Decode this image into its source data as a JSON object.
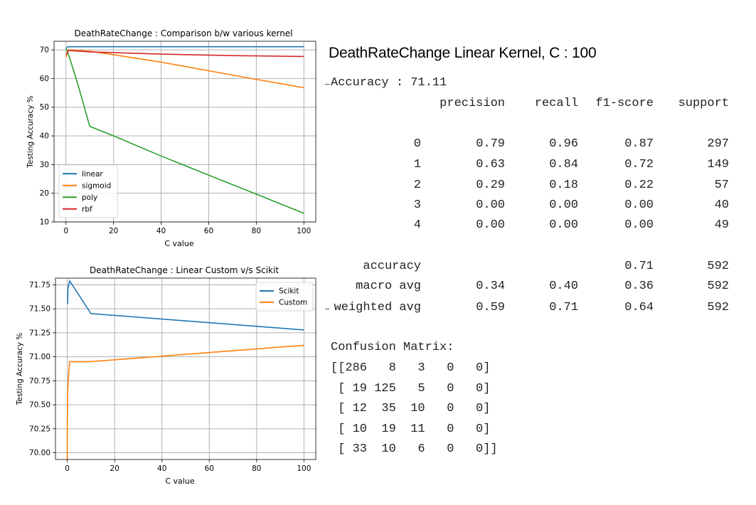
{
  "chart_data": [
    {
      "type": "line",
      "title": "DeathRateChange : Comparison b/w various kernel",
      "xlabel": "C value",
      "ylabel": "Testing Accuracy %",
      "xlim": [
        -5,
        105
      ],
      "ylim": [
        10,
        73
      ],
      "xticks": [
        0,
        20,
        40,
        60,
        80,
        100
      ],
      "yticks": [
        10,
        20,
        30,
        40,
        50,
        60,
        70
      ],
      "grid": true,
      "legend_position": "lower-left",
      "series": [
        {
          "name": "linear",
          "color": "#1f77b4",
          "x": [
            0.1,
            1,
            10,
            100
          ],
          "y": [
            70.7,
            71.1,
            71.1,
            71.1
          ]
        },
        {
          "name": "sigmoid",
          "color": "#ff7f0e",
          "x": [
            0.1,
            0.5,
            1,
            10,
            20,
            40,
            60,
            80,
            100
          ],
          "y": [
            67.5,
            69.0,
            70.0,
            69.5,
            68.3,
            65.7,
            62.7,
            59.7,
            56.8
          ]
        },
        {
          "name": "poly",
          "color": "#2ca02c",
          "x": [
            0.1,
            1,
            2,
            5,
            10,
            20,
            40,
            60,
            80,
            100
          ],
          "y": [
            70.5,
            68.5,
            66.0,
            58.0,
            43.3,
            40.0,
            33.0,
            26.3,
            19.7,
            13.0
          ]
        },
        {
          "name": "rbf",
          "color": "#d62728",
          "x": [
            0.1,
            1,
            10,
            40,
            70,
            100
          ],
          "y": [
            68.3,
            69.8,
            69.3,
            68.5,
            68.0,
            67.7
          ]
        }
      ]
    },
    {
      "type": "line",
      "title": "DeathRateChange : Linear Custom v/s Scikit",
      "xlabel": "C value",
      "ylabel": "Testing Accuracy %",
      "xlim": [
        -5,
        105
      ],
      "ylim": [
        69.93,
        71.82
      ],
      "xticks": [
        0,
        20,
        40,
        60,
        80,
        100
      ],
      "yticks": [
        70.0,
        70.25,
        70.5,
        70.75,
        71.0,
        71.25,
        71.5,
        71.75
      ],
      "grid": true,
      "legend_position": "upper-right",
      "series": [
        {
          "name": "Scikit",
          "color": "#1f77b4",
          "x": [
            0.1,
            0.3,
            1,
            10,
            100
          ],
          "y": [
            71.55,
            71.72,
            71.79,
            71.45,
            71.28
          ]
        },
        {
          "name": "Custom",
          "color": "#ff7f0e",
          "x": [
            0,
            0.05,
            0.1,
            0.5,
            1,
            10,
            100
          ],
          "y": [
            69.93,
            70.45,
            70.62,
            70.8,
            70.95,
            70.95,
            71.12
          ]
        }
      ]
    }
  ],
  "report": {
    "title": "DeathRateChange Linear Kernel, C : 100",
    "accuracy_line": "Accuracy : 71.11",
    "headers": [
      "precision",
      "recall",
      "f1-score",
      "support"
    ],
    "rows": [
      {
        "label": "0",
        "precision": "0.79",
        "recall": "0.96",
        "f1": "0.87",
        "support": "297"
      },
      {
        "label": "1",
        "precision": "0.63",
        "recall": "0.84",
        "f1": "0.72",
        "support": "149"
      },
      {
        "label": "2",
        "precision": "0.29",
        "recall": "0.18",
        "f1": "0.22",
        "support": "57"
      },
      {
        "label": "3",
        "precision": "0.00",
        "recall": "0.00",
        "f1": "0.00",
        "support": "40"
      },
      {
        "label": "4",
        "precision": "0.00",
        "recall": "0.00",
        "f1": "0.00",
        "support": "49"
      }
    ],
    "summary": [
      {
        "label": "accuracy",
        "precision": "",
        "recall": "",
        "f1": "0.71",
        "support": "592"
      },
      {
        "label": "macro avg",
        "precision": "0.34",
        "recall": "0.40",
        "f1": "0.36",
        "support": "592"
      },
      {
        "label": "weighted avg",
        "precision": "0.59",
        "recall": "0.71",
        "f1": "0.64",
        "support": "592"
      }
    ],
    "confusion_title": "Confusion Matrix:",
    "confusion_rows": [
      "[[286   8   3   0   0]",
      " [ 19 125   5   0   0]",
      " [ 12  35  10   0   0]",
      " [ 10  19  11   0   0]",
      " [ 33  10   6   0   0]]"
    ]
  }
}
